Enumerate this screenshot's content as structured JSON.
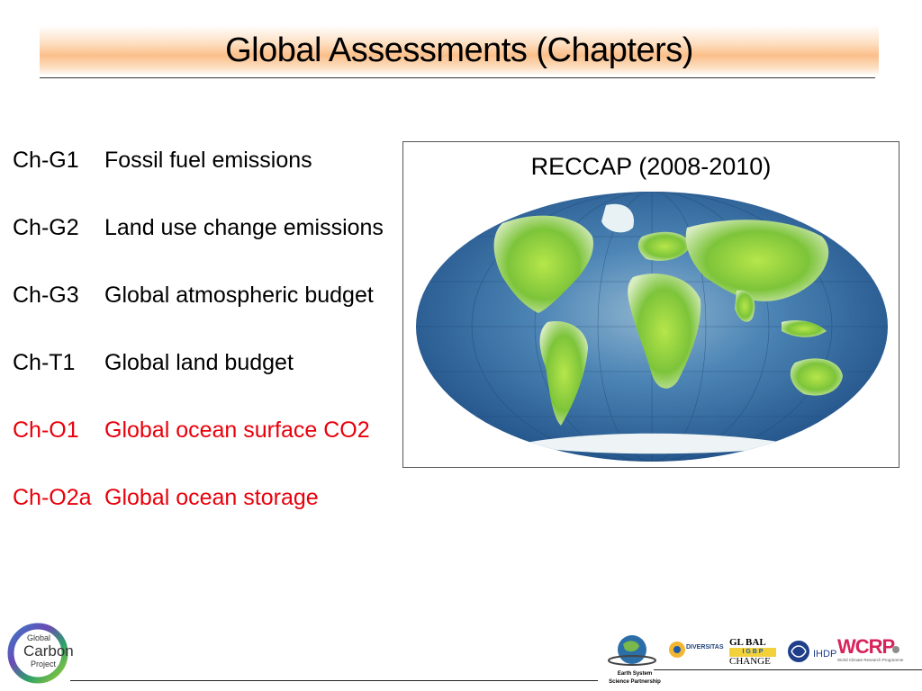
{
  "header": {
    "title": "Global Assessments (Chapters)"
  },
  "chapters": [
    {
      "code": "Ch-G1",
      "name": "Fossil fuel emissions",
      "color": "#000000"
    },
    {
      "code": "Ch-G2",
      "name": "Land use change emissions",
      "color": "#000000"
    },
    {
      "code": "Ch-G3",
      "name": "Global atmospheric budget",
      "color": "#000000"
    },
    {
      "code": "Ch-T1",
      "name": "Global land budget",
      "color": "#000000"
    },
    {
      "code": "Ch-O1",
      "name": "Global ocean surface CO2",
      "color": "#e8000b"
    },
    {
      "code": "Ch-O2a",
      "name": "Global ocean storage",
      "color": "#e8000b"
    }
  ],
  "map": {
    "caption": "RECCAP (2008-2010)",
    "icon": "world-map"
  },
  "footer": {
    "gcp_logo": {
      "line1": "Global",
      "line2": "Carbon",
      "line3": "Project"
    },
    "partners": {
      "essp": {
        "line1": "Earth System",
        "line2": "Science Partnership"
      },
      "diversitas": "DIVERSITAS",
      "igbp": {
        "line1": "GL  BAL",
        "line2": "I  G  B  P",
        "line3": "CHANGE"
      },
      "ihdp": "IHDP",
      "wcrp": {
        "name": "WCRP",
        "subtitle": "World Climate Research Programme"
      }
    }
  },
  "colors": {
    "accent_red": "#e8000b",
    "title_band": "#fbbf8a",
    "ocean": "#2f6aa6",
    "land": "#8fd03a"
  }
}
